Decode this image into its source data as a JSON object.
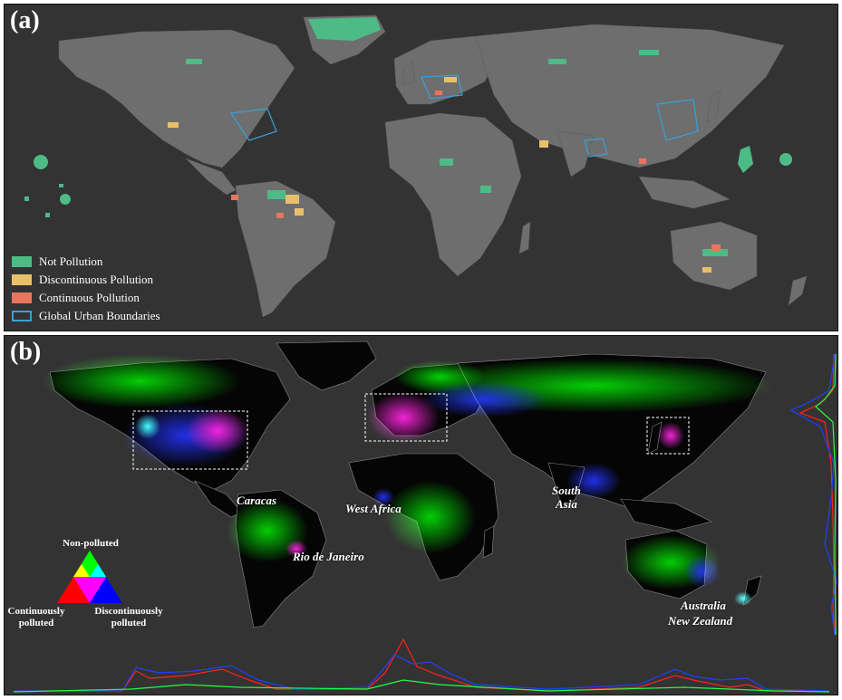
{
  "panel_a": {
    "label": "(a)",
    "legend": [
      {
        "label": "Not Pollution",
        "color": "#4dbb86",
        "style": "fill"
      },
      {
        "label": "Discontinuous Pollution",
        "color": "#e9c06a",
        "style": "fill"
      },
      {
        "label": "Continuous Pollution",
        "color": "#e8765e",
        "style": "fill"
      },
      {
        "label": "Global Urban Boundaries",
        "color": "#3aa0d8",
        "style": "outline"
      }
    ]
  },
  "panel_b": {
    "label": "(b)",
    "regions": {
      "caracas": "Caracas",
      "rio": "Rio de Janeiro",
      "west_africa": "West Africa",
      "south_asia_1": "South",
      "south_asia_2": "Asia",
      "australia": "Australia",
      "new_zealand": "New Zealand"
    },
    "triangle": {
      "top": "Non-polluted",
      "left_1": "Continuously",
      "left_2": "polluted",
      "right_1": "Discontinuously",
      "right_2": "polluted"
    },
    "colors": {
      "non_polluted": "#00ff00",
      "continuous": "#ff0000",
      "discontinuous": "#0000ff"
    }
  }
}
